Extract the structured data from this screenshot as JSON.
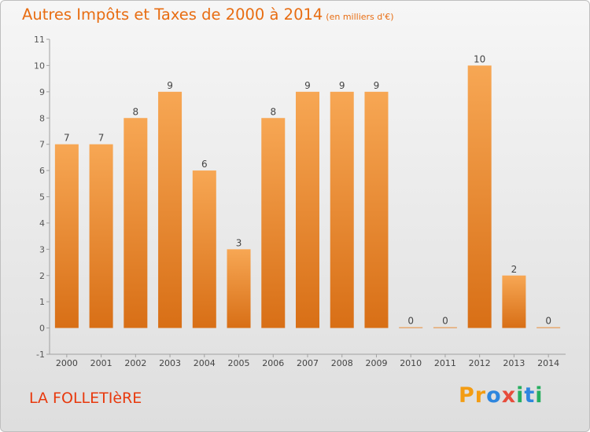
{
  "title": "Autres Impôts et Taxes de 2000 à 2014",
  "title_unit": "(en milliers d'€)",
  "commune": "LA FOLLETIèRE",
  "logo": {
    "letters": [
      "P",
      "r",
      "o",
      "x",
      "i",
      "t",
      "i"
    ],
    "colors": [
      "#f39c12",
      "#f39c12",
      "#2e86de",
      "#e74c3c",
      "#27ae60",
      "#2e86de",
      "#27ae60"
    ]
  },
  "colors": {
    "bar_top": "#f7a754",
    "bar_bottom": "#d86f16",
    "title": "#e86d12",
    "commune": "#e8390d"
  },
  "chart_data": {
    "type": "bar",
    "categories": [
      "2000",
      "2001",
      "2002",
      "2003",
      "2004",
      "2005",
      "2006",
      "2007",
      "2008",
      "2009",
      "2010",
      "2011",
      "2012",
      "2013",
      "2014"
    ],
    "values": [
      7,
      7,
      8,
      9,
      6,
      3,
      8,
      9,
      9,
      9,
      0,
      0,
      10,
      2,
      0
    ],
    "y_ticks": [
      "-1",
      "0",
      "1",
      "2",
      "3",
      "4",
      "5",
      "6",
      "7",
      "8",
      "9",
      "10",
      "11"
    ],
    "ylim": [
      -1,
      11
    ],
    "grid": false
  }
}
